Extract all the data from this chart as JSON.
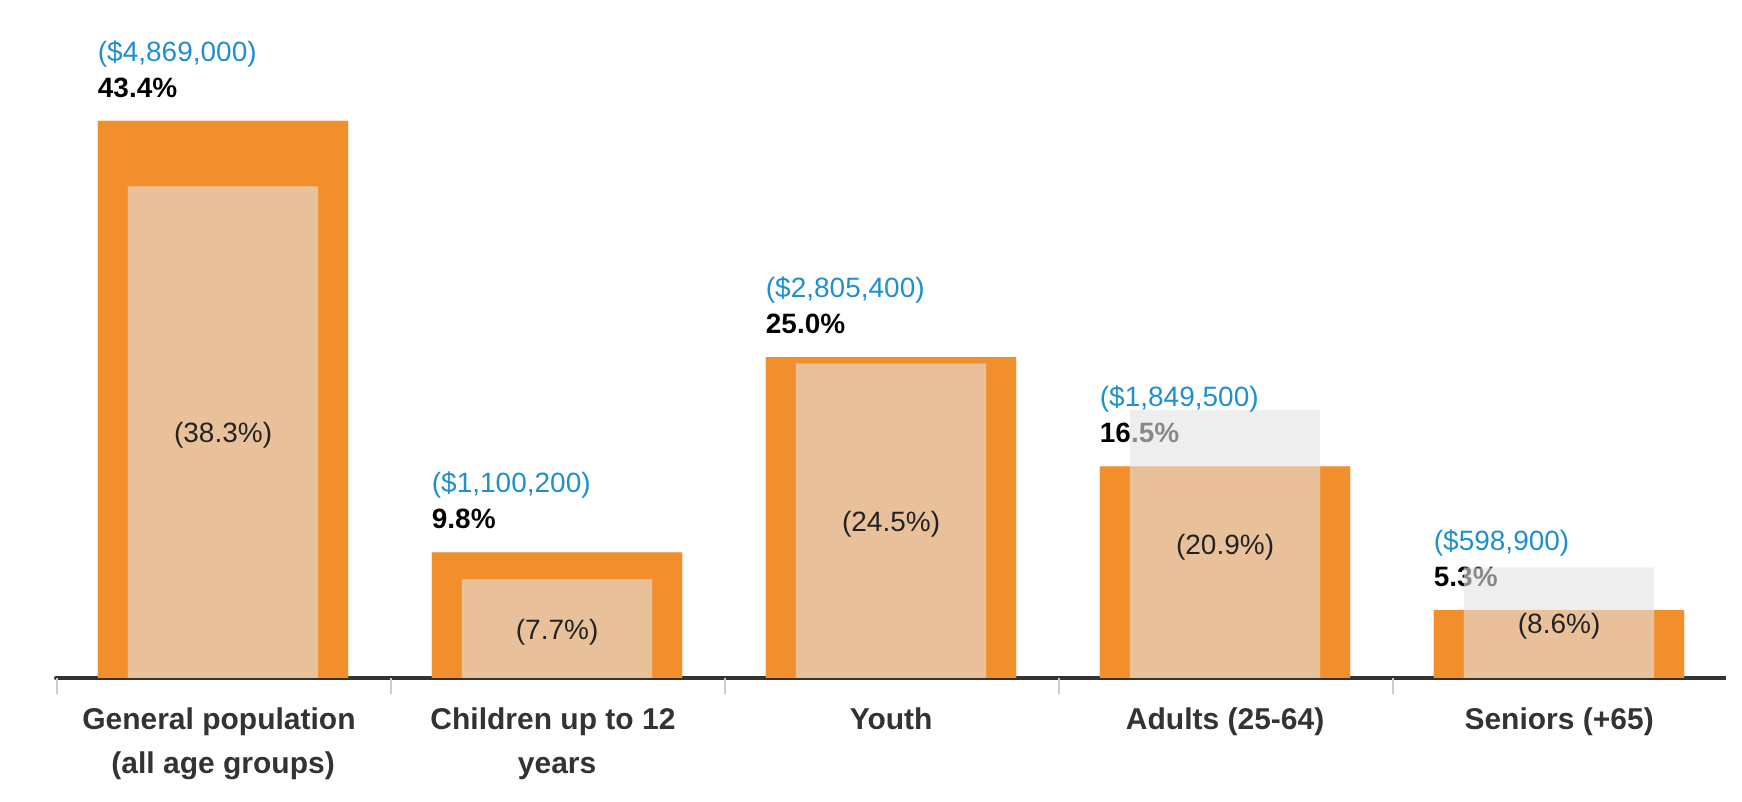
{
  "chart_data": {
    "type": "bar",
    "categories": [
      "General population (all age groups)",
      "Children up to 12 years",
      "Youth",
      "Adults (25-64)",
      "Seniors (+65)"
    ],
    "series": [
      {
        "color": "#f18f2d",
        "values": [
          43.4,
          9.8,
          25.0,
          16.5,
          5.3
        ],
        "value_labels": [
          "43.4%",
          "9.8%",
          "25.0%",
          "16.5%",
          "5.3%"
        ]
      },
      {
        "color": "#e3e3e3",
        "values": [
          38.3,
          7.7,
          24.5,
          20.9,
          8.6
        ],
        "value_labels": [
          "(38.3%)",
          "(7.7%)",
          "(24.5%)",
          "(20.9%)",
          "(8.6%)"
        ]
      }
    ],
    "annotations": [
      {
        "text": "($4,869,000)",
        "x": "General population (all age groups)",
        "y": 43.4
      },
      {
        "text": "($1,100,200)",
        "x": "Children up to 12 years",
        "y": 9.8
      },
      {
        "text": "($2,805,400)",
        "x": "Youth",
        "y": 25.0
      },
      {
        "text": "($1,849,500)",
        "x": "Adults (25-64)",
        "y": 16.5
      },
      {
        "text": "($598,900)",
        "x": "Seniors (+65)",
        "y": 5.3
      }
    ]
  }
}
